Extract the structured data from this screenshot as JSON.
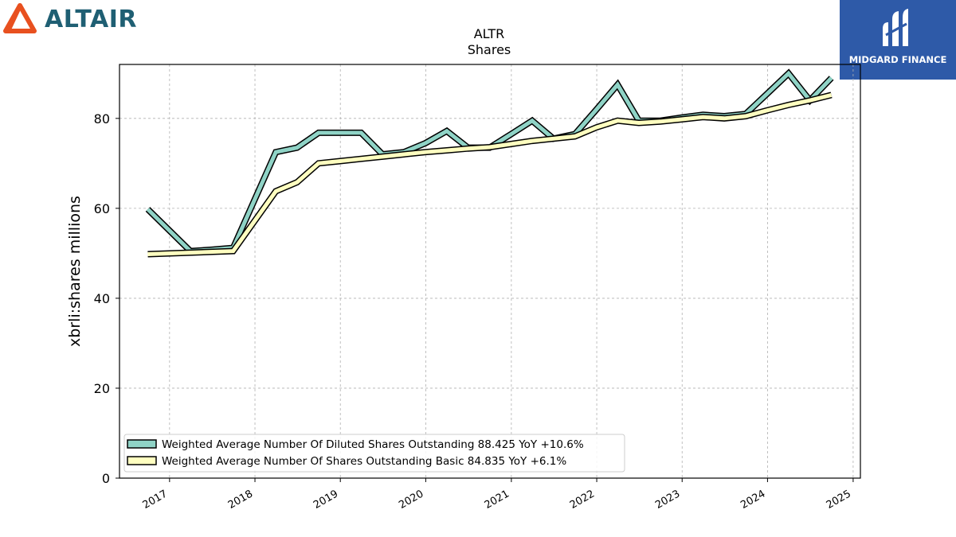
{
  "header": {
    "brand_name": "ALTAIR",
    "brand_icon": "altair-logo-icon",
    "brand_color": "#e8501f",
    "badge_text": "MIDGARD FINANCE",
    "badge_icon": "midgard-logo-icon",
    "badge_color": "#2e5aa8"
  },
  "chart_data": {
    "type": "line",
    "title": "ALTR",
    "subtitle": "Shares",
    "ylabel": "xbrli:shares millions",
    "xlabel": "",
    "ylim": [
      0,
      92
    ],
    "xlim": [
      "2016-06-01",
      "2025-02-01"
    ],
    "yticks": [
      0,
      20,
      40,
      60,
      80
    ],
    "xticks": [
      "2017",
      "2018",
      "2019",
      "2020",
      "2021",
      "2022",
      "2023",
      "2024",
      "2025"
    ],
    "grid": true,
    "legend_position": "lower-left",
    "series": [
      {
        "name": "Weighted Average Number Of Diluted Shares Outstanding  88.425 YoY +10.6%",
        "color": "#8fd3c6",
        "x": [
          "2016-09-30",
          "2017-03-31",
          "2017-06-30",
          "2017-09-30",
          "2018-03-31",
          "2018-06-30",
          "2018-09-30",
          "2018-12-31",
          "2019-03-31",
          "2019-06-30",
          "2019-09-30",
          "2019-12-31",
          "2020-03-31",
          "2020-06-30",
          "2020-09-30",
          "2020-12-31",
          "2021-03-31",
          "2021-06-30",
          "2021-09-30",
          "2021-12-31",
          "2022-03-31",
          "2022-06-30",
          "2022-09-30",
          "2022-12-31",
          "2023-03-31",
          "2023-06-30",
          "2023-09-30",
          "2023-12-31",
          "2024-03-31",
          "2024-06-30",
          "2024-09-30"
        ],
        "values": [
          59.8,
          50.5,
          50.8,
          51.2,
          72.5,
          73.5,
          76.8,
          76.8,
          76.8,
          72.0,
          72.5,
          74.5,
          77.2,
          73.5,
          73.5,
          76.5,
          79.5,
          75.5,
          76.5,
          82.0,
          87.5,
          79.5,
          79.5,
          80.2,
          80.8,
          80.5,
          81.0,
          85.5,
          90.0,
          84.0,
          89.0
        ]
      },
      {
        "name": "Weighted Average Number Of Shares Outstanding Basic  84.835 YoY +6.1%",
        "color": "#ffffc0",
        "x": [
          "2016-09-30",
          "2017-09-30",
          "2018-03-31",
          "2018-06-30",
          "2018-09-30",
          "2018-12-31",
          "2019-03-31",
          "2019-06-30",
          "2019-09-30",
          "2019-12-31",
          "2020-03-31",
          "2020-06-30",
          "2020-09-30",
          "2020-12-31",
          "2021-03-31",
          "2021-06-30",
          "2021-09-30",
          "2021-12-31",
          "2022-03-31",
          "2022-06-30",
          "2022-09-30",
          "2022-12-31",
          "2023-03-31",
          "2023-06-30",
          "2023-09-30",
          "2023-12-31",
          "2024-03-31",
          "2024-06-30",
          "2024-09-30"
        ],
        "values": [
          49.8,
          50.5,
          63.8,
          65.8,
          70.0,
          70.5,
          71.0,
          71.5,
          72.0,
          72.5,
          72.9,
          73.3,
          73.6,
          74.3,
          75.0,
          75.5,
          76.0,
          78.0,
          79.5,
          79.0,
          79.3,
          79.8,
          80.3,
          80.0,
          80.5,
          81.8,
          83.0,
          84.0,
          85.2
        ]
      }
    ]
  }
}
